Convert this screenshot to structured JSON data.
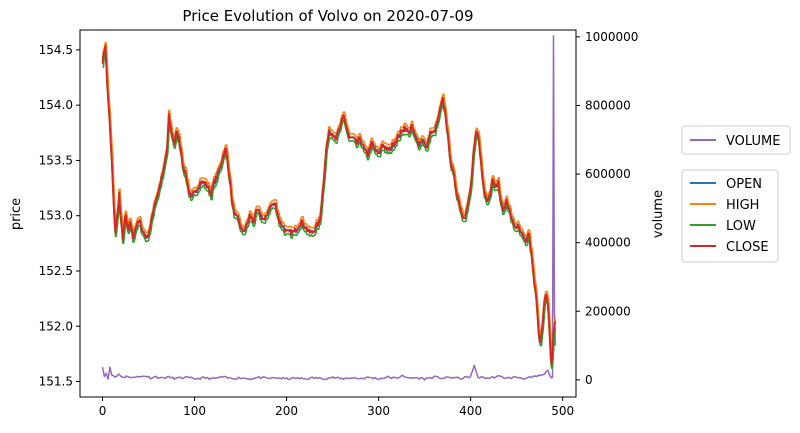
{
  "chart_data": {
    "type": "line",
    "title": "Price Evolution of Volvo on 2020-07-09",
    "xlabel": "",
    "ylabel": "price",
    "y2label": "volume",
    "xlim": [
      -24.5,
      514.5
    ],
    "ylim": [
      151.36,
      154.68
    ],
    "y2lim": [
      -50000,
      1020000
    ],
    "x_ticks": [
      0,
      100,
      200,
      300,
      400,
      500
    ],
    "y_ticks": [
      151.5,
      152.0,
      152.5,
      153.0,
      153.5,
      154.0,
      154.5
    ],
    "y2_ticks": [
      0,
      200000,
      400000,
      600000,
      800000,
      1000000
    ],
    "x_tick_labels": [
      "0",
      "100",
      "200",
      "300",
      "400",
      "500"
    ],
    "y_tick_labels": [
      "151.5",
      "152.0",
      "152.5",
      "153.0",
      "153.5",
      "154.0",
      "154.5"
    ],
    "y2_tick_labels": [
      "0",
      "200000",
      "400000",
      "600000",
      "800000",
      "1000000"
    ],
    "grid": false,
    "legend_volume": [
      {
        "name": "VOLUME",
        "color": "#9467bd"
      }
    ],
    "legend_price": [
      {
        "name": "OPEN",
        "color": "#1f77b4"
      },
      {
        "name": "HIGH",
        "color": "#ff7f0e"
      },
      {
        "name": "LOW",
        "color": "#2ca02c"
      },
      {
        "name": "CLOSE",
        "color": "#d62728"
      }
    ],
    "close_keypoints": [
      [
        0,
        154.4
      ],
      [
        3,
        154.55
      ],
      [
        5,
        154.2
      ],
      [
        8,
        153.8
      ],
      [
        10,
        153.5
      ],
      [
        12,
        153.1
      ],
      [
        14,
        152.85
      ],
      [
        16,
        153.0
      ],
      [
        18,
        153.2
      ],
      [
        20,
        152.95
      ],
      [
        22,
        152.8
      ],
      [
        25,
        153.0
      ],
      [
        28,
        152.85
      ],
      [
        30,
        152.95
      ],
      [
        33,
        152.8
      ],
      [
        36,
        152.9
      ],
      [
        40,
        152.95
      ],
      [
        44,
        152.85
      ],
      [
        48,
        152.8
      ],
      [
        52,
        152.9
      ],
      [
        56,
        153.1
      ],
      [
        60,
        153.2
      ],
      [
        63,
        153.3
      ],
      [
        66,
        153.4
      ],
      [
        70,
        153.6
      ],
      [
        72,
        153.9
      ],
      [
        75,
        153.75
      ],
      [
        78,
        153.65
      ],
      [
        80,
        153.75
      ],
      [
        83,
        153.7
      ],
      [
        86,
        153.55
      ],
      [
        88,
        153.4
      ],
      [
        90,
        153.4
      ],
      [
        93,
        153.25
      ],
      [
        96,
        153.15
      ],
      [
        99,
        153.2
      ],
      [
        103,
        153.25
      ],
      [
        106,
        153.3
      ],
      [
        110,
        153.3
      ],
      [
        115,
        153.25
      ],
      [
        118,
        153.2
      ],
      [
        121,
        153.3
      ],
      [
        124,
        153.35
      ],
      [
        128,
        153.45
      ],
      [
        131,
        153.55
      ],
      [
        134,
        153.6
      ],
      [
        138,
        153.35
      ],
      [
        141,
        153.1
      ],
      [
        144,
        153.0
      ],
      [
        148,
        152.95
      ],
      [
        152,
        152.85
      ],
      [
        156,
        152.9
      ],
      [
        160,
        153.0
      ],
      [
        164,
        152.95
      ],
      [
        168,
        153.05
      ],
      [
        172,
        153.0
      ],
      [
        176,
        152.95
      ],
      [
        180,
        153.05
      ],
      [
        184,
        153.1
      ],
      [
        188,
        153.1
      ],
      [
        192,
        152.95
      ],
      [
        196,
        152.9
      ],
      [
        200,
        152.85
      ],
      [
        204,
        152.85
      ],
      [
        208,
        152.85
      ],
      [
        212,
        152.9
      ],
      [
        216,
        152.95
      ],
      [
        220,
        152.9
      ],
      [
        224,
        152.85
      ],
      [
        228,
        152.85
      ],
      [
        232,
        152.9
      ],
      [
        236,
        152.95
      ],
      [
        240,
        153.3
      ],
      [
        243,
        153.6
      ],
      [
        246,
        153.75
      ],
      [
        250,
        153.75
      ],
      [
        254,
        153.7
      ],
      [
        258,
        153.8
      ],
      [
        262,
        153.9
      ],
      [
        265,
        153.8
      ],
      [
        268,
        153.7
      ],
      [
        272,
        153.7
      ],
      [
        276,
        153.65
      ],
      [
        280,
        153.7
      ],
      [
        284,
        153.6
      ],
      [
        288,
        153.55
      ],
      [
        292,
        153.65
      ],
      [
        296,
        153.6
      ],
      [
        300,
        153.55
      ],
      [
        304,
        153.65
      ],
      [
        308,
        153.6
      ],
      [
        312,
        153.6
      ],
      [
        316,
        153.65
      ],
      [
        320,
        153.7
      ],
      [
        324,
        153.75
      ],
      [
        328,
        153.8
      ],
      [
        332,
        153.75
      ],
      [
        336,
        153.8
      ],
      [
        340,
        153.7
      ],
      [
        344,
        153.65
      ],
      [
        348,
        153.7
      ],
      [
        352,
        153.6
      ],
      [
        356,
        153.75
      ],
      [
        360,
        153.75
      ],
      [
        364,
        153.85
      ],
      [
        368,
        154.0
      ],
      [
        370,
        154.05
      ],
      [
        373,
        153.9
      ],
      [
        376,
        153.65
      ],
      [
        379,
        153.45
      ],
      [
        382,
        153.35
      ],
      [
        385,
        153.2
      ],
      [
        388,
        153.1
      ],
      [
        391,
        153.0
      ],
      [
        394,
        153.0
      ],
      [
        397,
        153.1
      ],
      [
        400,
        153.25
      ],
      [
        403,
        153.55
      ],
      [
        406,
        153.75
      ],
      [
        409,
        153.7
      ],
      [
        412,
        153.4
      ],
      [
        415,
        153.2
      ],
      [
        418,
        153.15
      ],
      [
        421,
        153.2
      ],
      [
        424,
        153.35
      ],
      [
        427,
        153.25
      ],
      [
        430,
        153.3
      ],
      [
        433,
        153.1
      ],
      [
        436,
        153.05
      ],
      [
        439,
        153.15
      ],
      [
        442,
        153.05
      ],
      [
        445,
        152.95
      ],
      [
        448,
        152.9
      ],
      [
        451,
        152.9
      ],
      [
        454,
        152.85
      ],
      [
        457,
        152.8
      ],
      [
        460,
        152.75
      ],
      [
        463,
        152.85
      ],
      [
        466,
        152.65
      ],
      [
        469,
        152.4
      ],
      [
        472,
        152.2
      ],
      [
        474,
        151.95
      ],
      [
        476,
        151.85
      ],
      [
        478,
        152.0
      ],
      [
        480,
        152.2
      ],
      [
        482,
        152.3
      ],
      [
        484,
        152.2
      ],
      [
        486,
        151.9
      ],
      [
        487,
        151.7
      ],
      [
        488,
        151.65
      ],
      [
        490,
        151.95
      ],
      [
        492,
        152.05
      ]
    ],
    "volume_keypoints": [
      [
        0,
        40000
      ],
      [
        2,
        10000
      ],
      [
        4,
        20000
      ],
      [
        6,
        5000
      ],
      [
        8,
        35000
      ],
      [
        10,
        15000
      ],
      [
        14,
        8000
      ],
      [
        18,
        18000
      ],
      [
        22,
        6000
      ],
      [
        26,
        12000
      ],
      [
        30,
        5000
      ],
      [
        34,
        10000
      ],
      [
        40,
        8000
      ],
      [
        46,
        12000
      ],
      [
        52,
        6000
      ],
      [
        58,
        9000
      ],
      [
        64,
        5000
      ],
      [
        70,
        8000
      ],
      [
        80,
        4000
      ],
      [
        90,
        7000
      ],
      [
        100,
        3000
      ],
      [
        110,
        6000
      ],
      [
        120,
        3000
      ],
      [
        130,
        8000
      ],
      [
        140,
        4000
      ],
      [
        150,
        6000
      ],
      [
        160,
        3000
      ],
      [
        170,
        7000
      ],
      [
        180,
        4000
      ],
      [
        190,
        6000
      ],
      [
        200,
        3000
      ],
      [
        210,
        5000
      ],
      [
        220,
        3000
      ],
      [
        230,
        6000
      ],
      [
        240,
        4000
      ],
      [
        250,
        7000
      ],
      [
        260,
        3000
      ],
      [
        270,
        6000
      ],
      [
        280,
        4000
      ],
      [
        290,
        7000
      ],
      [
        300,
        3000
      ],
      [
        310,
        8000
      ],
      [
        320,
        4000
      ],
      [
        326,
        15000
      ],
      [
        330,
        5000
      ],
      [
        340,
        6000
      ],
      [
        350,
        3000
      ],
      [
        360,
        8000
      ],
      [
        370,
        5000
      ],
      [
        380,
        7000
      ],
      [
        390,
        4000
      ],
      [
        400,
        10000
      ],
      [
        404,
        40000
      ],
      [
        408,
        8000
      ],
      [
        420,
        5000
      ],
      [
        430,
        10000
      ],
      [
        440,
        5000
      ],
      [
        450,
        8000
      ],
      [
        460,
        4000
      ],
      [
        470,
        9000
      ],
      [
        480,
        15000
      ],
      [
        484,
        30000
      ],
      [
        486,
        10000
      ],
      [
        489,
        8000
      ],
      [
        490,
        1000000
      ],
      [
        491,
        200000
      ],
      [
        492,
        100000
      ]
    ]
  }
}
